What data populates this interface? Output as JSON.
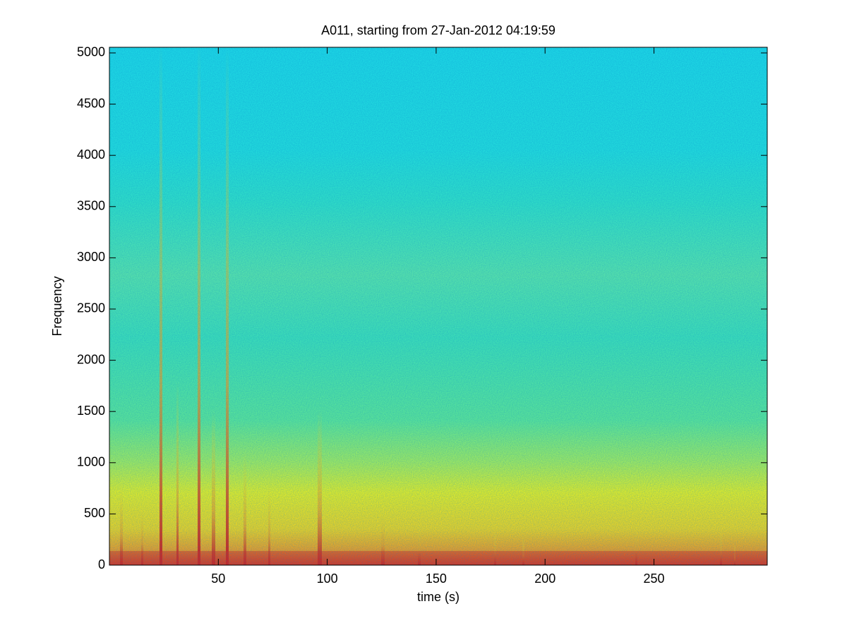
{
  "chart_data": {
    "type": "spectrogram",
    "title": "A011, starting from 27-Jan-2012 04:19:59",
    "x_label": "time (s)",
    "y_label": "Frequency",
    "colormap": "jet",
    "xlim": [
      0,
      302
    ],
    "xticks": [
      50,
      100,
      150,
      200,
      250
    ],
    "ylim": [
      0,
      5055
    ],
    "yticks": [
      0,
      500,
      1000,
      1500,
      2000,
      2500,
      3000,
      3500,
      4000,
      4500,
      5000
    ]
  }
}
